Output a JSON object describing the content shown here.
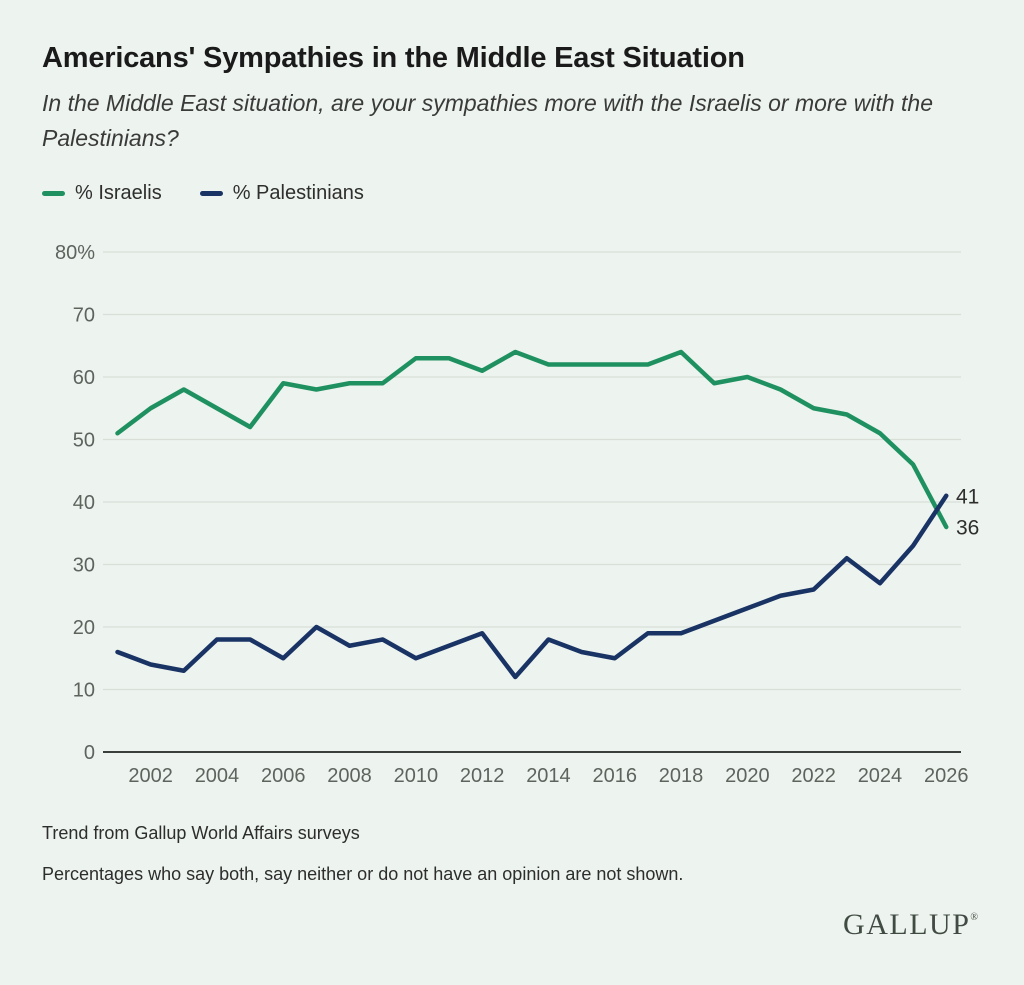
{
  "header": {
    "title": "Americans' Sympathies in the Middle East Situation",
    "subtitle": "In the Middle East situation, are your sympathies more with the Israelis or more with the Palestinians?"
  },
  "legend": {
    "israelis_label": "% Israelis",
    "palestinians_label": "% Palestinians"
  },
  "colors": {
    "israelis": "#1f9161",
    "palestinians": "#1a3365",
    "background": "#edf3ee",
    "gridline": "#d9ded7",
    "axis": "#3a3f3c",
    "tick_text": "#5e635e",
    "end_label_text": "#2e2e2e"
  },
  "chart_data": {
    "type": "line",
    "title": "Americans' Sympathies in the Middle East Situation",
    "xlabel": "",
    "ylabel": "%",
    "grid": true,
    "legend_position": "top-left",
    "ylim": [
      0,
      80
    ],
    "ytick_step": 10,
    "ytick_top_label": "80%",
    "xticks": [
      2002,
      2004,
      2006,
      2008,
      2010,
      2012,
      2014,
      2016,
      2018,
      2020,
      2022,
      2024,
      2026
    ],
    "x": [
      2001,
      2002,
      2003,
      2004,
      2005,
      2006,
      2007,
      2008,
      2009,
      2010,
      2011,
      2012,
      2013,
      2014,
      2015,
      2016,
      2017,
      2018,
      2019,
      2020,
      2021,
      2022,
      2023,
      2024,
      2025,
      2026
    ],
    "series": [
      {
        "name": "% Israelis",
        "color_key": "israelis",
        "end_label": "36",
        "values": [
          51,
          55,
          58,
          55,
          52,
          59,
          58,
          59,
          59,
          63,
          63,
          61,
          64,
          62,
          62,
          62,
          62,
          64,
          59,
          60,
          58,
          55,
          54,
          51,
          46,
          36
        ]
      },
      {
        "name": "% Palestinians",
        "color_key": "palestinians",
        "end_label": "41",
        "values": [
          16,
          14,
          13,
          18,
          18,
          15,
          20,
          17,
          18,
          15,
          17,
          19,
          12,
          18,
          16,
          15,
          19,
          19,
          21,
          23,
          25,
          26,
          31,
          27,
          33,
          41
        ]
      }
    ]
  },
  "footer": {
    "note1": "Trend from Gallup World Affairs surveys",
    "note2": "Percentages who say both, say neither or do not have an opinion are not shown.",
    "brand": "GALLUP",
    "brand_mark": "®"
  }
}
